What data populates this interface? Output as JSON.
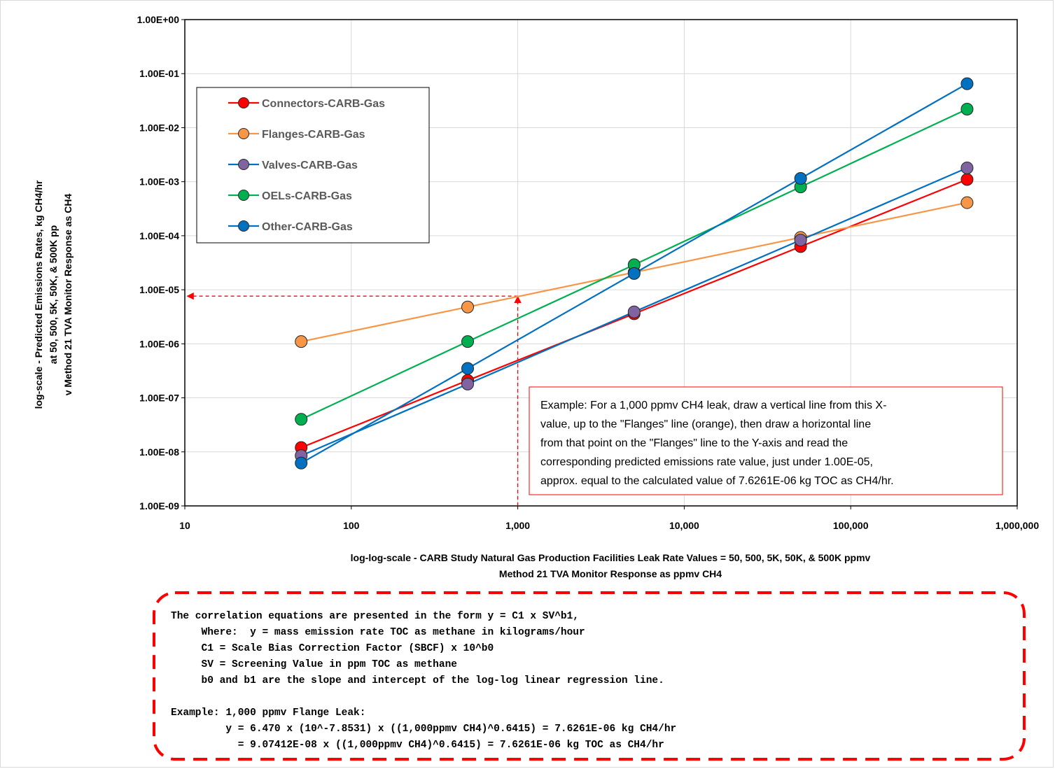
{
  "chart_data": {
    "type": "line",
    "x_scale": "log",
    "y_scale": "log",
    "xlim": [
      10,
      1000000
    ],
    "ylim": [
      1e-09,
      1
    ],
    "grid": true,
    "legend_position": "top-left",
    "x_ticks": [
      {
        "value": 10,
        "label": "10"
      },
      {
        "value": 100,
        "label": "100"
      },
      {
        "value": 1000,
        "label": "1,000"
      },
      {
        "value": 10000,
        "label": "10,000"
      },
      {
        "value": 100000,
        "label": "100,000"
      },
      {
        "value": 1000000,
        "label": "1,000,000"
      }
    ],
    "y_ticks": [
      {
        "value": 1e-09,
        "label": "1.00E-09"
      },
      {
        "value": 1e-08,
        "label": "1.00E-08"
      },
      {
        "value": 1e-07,
        "label": "1.00E-07"
      },
      {
        "value": 1e-06,
        "label": "1.00E-06"
      },
      {
        "value": 1e-05,
        "label": "1.00E-05"
      },
      {
        "value": 0.0001,
        "label": "1.00E-04"
      },
      {
        "value": 0.001,
        "label": "1.00E-03"
      },
      {
        "value": 0.01,
        "label": "1.00E-02"
      },
      {
        "value": 0.1,
        "label": "1.00E-01"
      },
      {
        "value": 1,
        "label": "1.00E+00"
      }
    ],
    "ylabel_lines": [
      "log-scale - Predicted Emissions Rates, kg CH4/hr",
      "at 50, 500, 5K, 50K, & 500K pp",
      "v Method 21 TVA Monitor Response as CH4"
    ],
    "xlabel_lines": [
      "log-log-scale - CARB Study Natural Gas Production Facilities Leak Rate Values = 50, 500, 5K, 50K, & 500K ppmv",
      "Method 21 TVA Monitor Response as ppmv CH4"
    ],
    "x": [
      50,
      500,
      5000,
      50000,
      500000
    ],
    "series": [
      {
        "name": "Connectors-CARB-Gas",
        "color": "#ff0000",
        "values": [
          1.2e-08,
          2.1e-07,
          3.6e-06,
          6.3e-05,
          0.0011
        ]
      },
      {
        "name": "Flanges-CARB-Gas",
        "color": "#f79646",
        "values": [
          1.1e-06,
          4.8e-06,
          2.1e-05,
          9.3e-05,
          0.00041
        ]
      },
      {
        "name": "Valves-CARB-Gas",
        "color": "#8064a2",
        "line_color": "#0070c0",
        "values": [
          8.5e-09,
          1.8e-07,
          3.9e-06,
          8.3e-05,
          0.0018
        ]
      },
      {
        "name": "OELs-CARB-Gas",
        "color": "#00b050",
        "values": [
          4e-08,
          1.1e-06,
          2.9e-05,
          0.0008,
          0.022
        ]
      },
      {
        "name": "Other-CARB-Gas",
        "color": "#0070c0",
        "values": [
          6.2e-09,
          3.5e-07,
          2e-05,
          0.00115,
          0.065
        ]
      }
    ],
    "example_guide": {
      "x": 1000,
      "y": 7.6261e-06,
      "color": "#ff0000"
    },
    "annotation_lines": [
      "Example: For a 1,000 ppmv CH4 leak, draw a vertical line from this X-",
      "value, up to the \"Flanges\" line (orange), then draw a horizontal line",
      "from that point on the \"Flanges\" line to the Y-axis and read the",
      "corresponding predicted emissions rate value, just under 1.00E-05,",
      "approx. equal to the calculated value of 7.6261E-06 kg TOC as  CH4/hr."
    ]
  },
  "equation_box": {
    "lines": [
      "The correlation equations are presented in the form y = C1 x SV^b1,",
      "     Where:  y = mass emission rate TOC as methane in kilograms/hour",
      "     C1 = Scale Bias Correction Factor (SBCF) x 10^b0",
      "     SV = Screening Value in ppm TOC as methane",
      "     b0 and b1 are the slope and intercept of the log-log linear regression line.",
      "",
      "Example: 1,000 ppmv Flange Leak:",
      "         y = 6.470 x (10^-7.8531) x ((1,000ppmv CH4)^0.6415) = 7.6261E-06 kg CH4/hr",
      "           = 9.07412E-08 x ((1,000ppmv CH4)^0.6415) = 7.6261E-06 kg TOC as CH4/hr"
    ],
    "border_color": "#ff0000"
  }
}
